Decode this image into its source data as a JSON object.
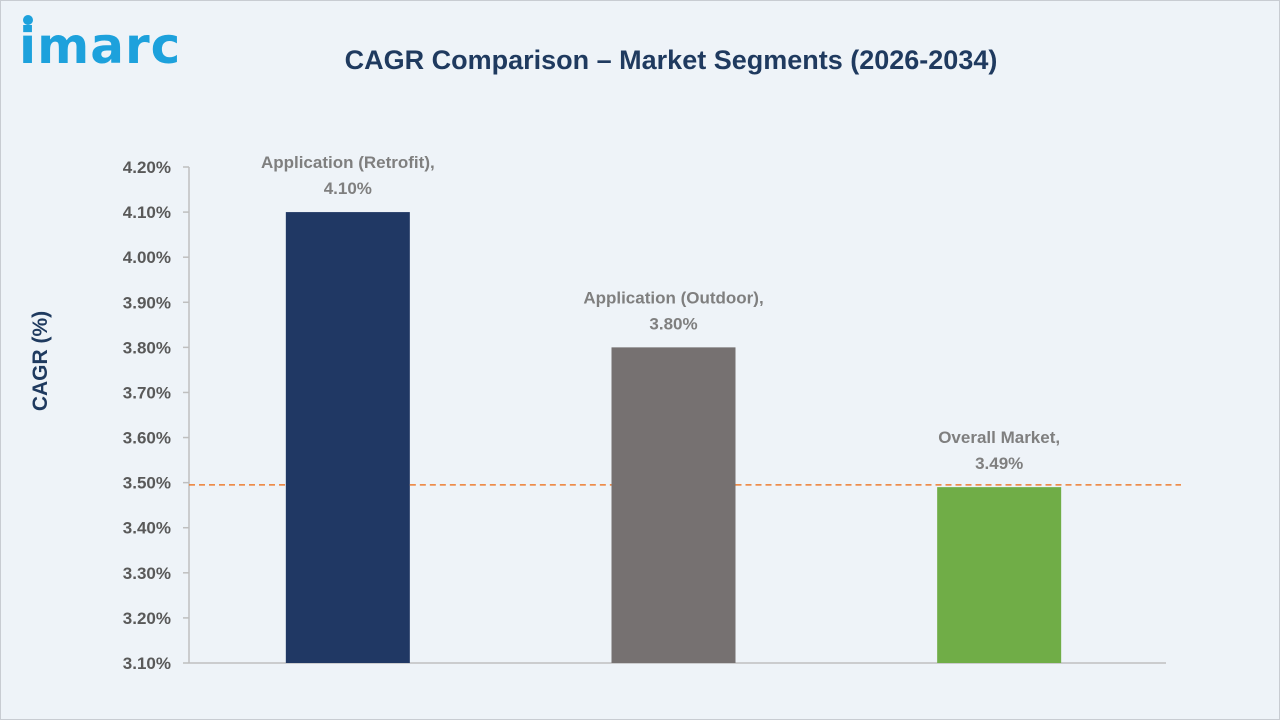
{
  "brand": {
    "logo_text": "imarc"
  },
  "chart_data": {
    "type": "bar",
    "title": "CAGR Comparison – Market Segments (2026-2034)",
    "xlabel": "",
    "ylabel": "CAGR (%)",
    "ylim": [
      3.1,
      4.2
    ],
    "ytick_step": 0.1,
    "ytick_labels": [
      "3.10%",
      "3.20%",
      "3.30%",
      "3.40%",
      "3.50%",
      "3.60%",
      "3.70%",
      "3.80%",
      "3.90%",
      "4.00%",
      "4.10%",
      "4.20%"
    ],
    "categories": [
      "Application (Retrofit)",
      "Application (Outdoor)",
      "Overall Market"
    ],
    "values": [
      4.1,
      3.8,
      3.49
    ],
    "data_labels": [
      [
        "Application (Retrofit),",
        "4.10%"
      ],
      [
        "Application (Outdoor),",
        "3.80%"
      ],
      [
        "Overall Market,",
        "3.49%"
      ]
    ],
    "bar_colors": [
      "#203864",
      "#767171",
      "#70ad47"
    ],
    "reference_line": {
      "value": 3.495,
      "style": "dashed",
      "color": "#ed7d31"
    },
    "grid": false,
    "legend": "none"
  }
}
